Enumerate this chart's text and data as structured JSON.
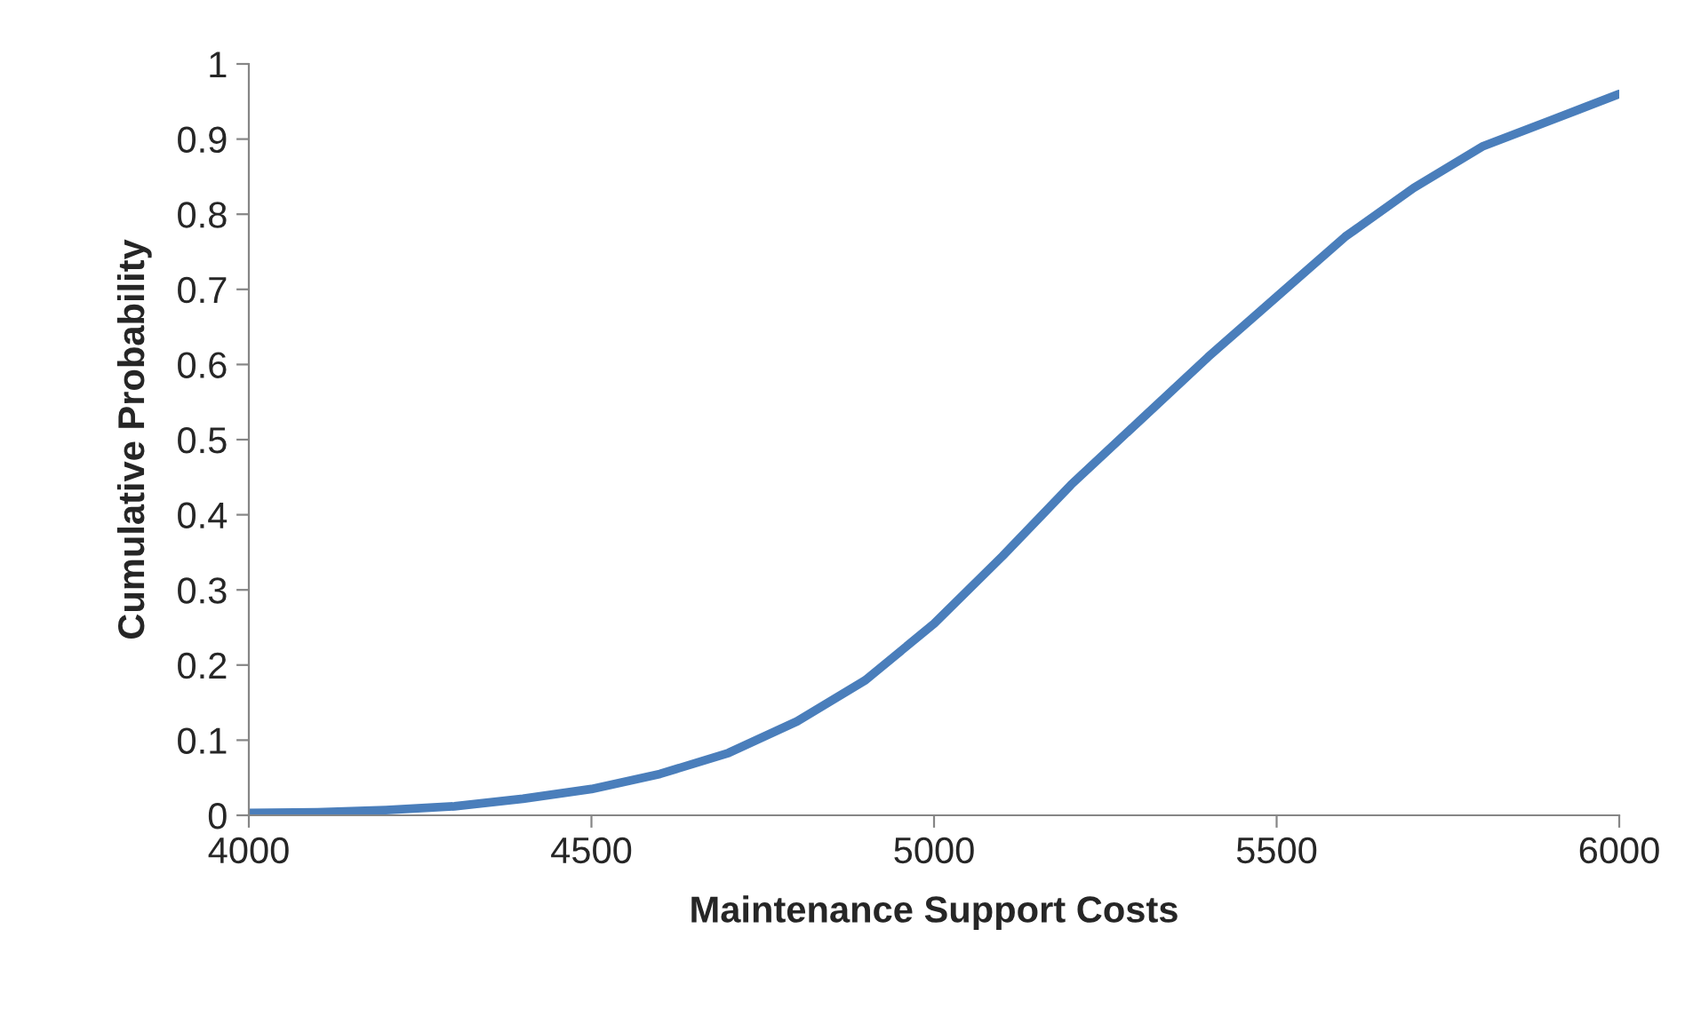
{
  "chart_data": {
    "type": "line",
    "xlabel": "Maintenance Support Costs",
    "ylabel": "Cumulative Probability",
    "x": [
      4000,
      4100,
      4200,
      4300,
      4400,
      4500,
      4600,
      4700,
      4800,
      4900,
      5000,
      5100,
      5200,
      5300,
      5400,
      5500,
      5600,
      5700,
      5800,
      5900,
      6000
    ],
    "series": [
      {
        "color": "#4a7ebb",
        "values": [
          0.003,
          0.004,
          0.007,
          0.012,
          0.022,
          0.035,
          0.055,
          0.083,
          0.125,
          0.18,
          0.255,
          0.345,
          0.44,
          0.525,
          0.61,
          0.69,
          0.77,
          0.835,
          0.89,
          0.925,
          0.96
        ]
      }
    ],
    "xlim": [
      4000,
      6000
    ],
    "xticks": [
      4000,
      4500,
      5000,
      5500,
      6000
    ],
    "ylim": [
      0,
      1
    ],
    "yticks": [
      0,
      0.1,
      0.2,
      0.3,
      0.4,
      0.5,
      0.6,
      0.7,
      0.8,
      0.9,
      1
    ],
    "grid": false,
    "legend": false,
    "marker": "none",
    "line_style": "solid"
  }
}
